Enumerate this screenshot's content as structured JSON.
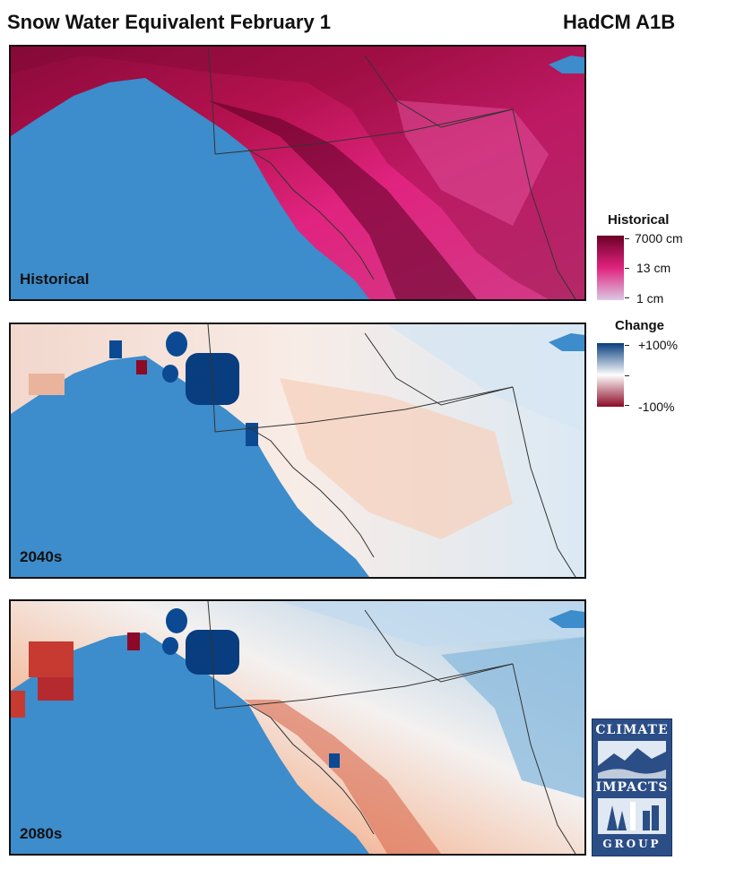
{
  "header": {
    "title": "Snow Water Equivalent February 1",
    "model": "HadCM A1B"
  },
  "panels": [
    {
      "label": "Historical",
      "scheme": "historical"
    },
    {
      "label": "2040s",
      "scheme": "change_mid"
    },
    {
      "label": "2080s",
      "scheme": "change_late"
    }
  ],
  "legend": {
    "historical": {
      "title": "Historical",
      "labels": [
        "7000 cm",
        "13 cm",
        "1 cm"
      ],
      "colors": [
        "#6b0026",
        "#e0237f",
        "#dcc7e3"
      ]
    },
    "change": {
      "title": "Change",
      "labels": [
        "+100%",
        "-100%"
      ],
      "colors": [
        "#083d7f",
        "#fdfdfd",
        "#8d0a26"
      ]
    }
  },
  "logo": {
    "top": "CLIMATE",
    "middle": "IMPACTS",
    "bottom": "GROUP"
  },
  "colors": {
    "ocean": "#3d8ccb",
    "outline": "#333333"
  }
}
